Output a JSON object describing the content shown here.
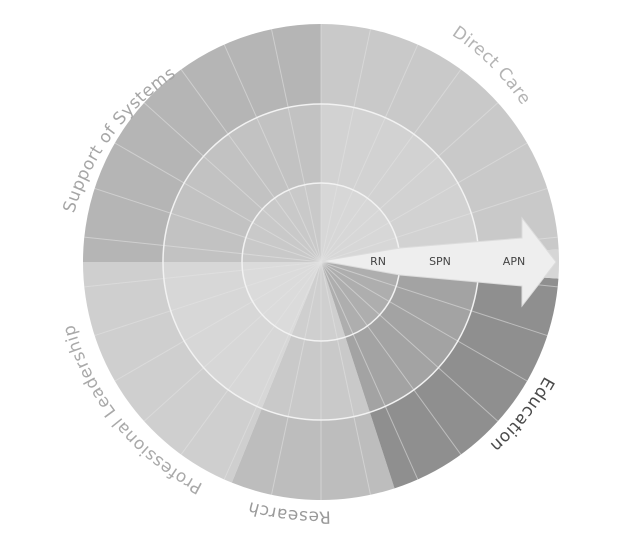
{
  "ring_labels": [
    "RN",
    "SPN",
    "APN"
  ],
  "domains": [
    {
      "name": "Direct Care",
      "color": "#c9c9c9",
      "label_color": "#b3b3b3"
    },
    {
      "name": "Support of Systems",
      "color": "#b5b5b5",
      "label_color": "#a6a6a6"
    },
    {
      "name": "Professional Leadership",
      "color": "#cfcfcf",
      "label_color": "#a9a9a9"
    },
    {
      "name": "Research",
      "color": "#bdbdbd",
      "label_color": "#9a9a9a"
    },
    {
      "name": "Education",
      "color": "#8f8f8f",
      "label_color": "#4a4a4a"
    }
  ],
  "colors": {
    "ring_line": "#f2f2f2",
    "spoke_line": "#e3e3e3",
    "arrow_fill": "#eeeeee",
    "arrow_edge": "#dcdcdc"
  }
}
